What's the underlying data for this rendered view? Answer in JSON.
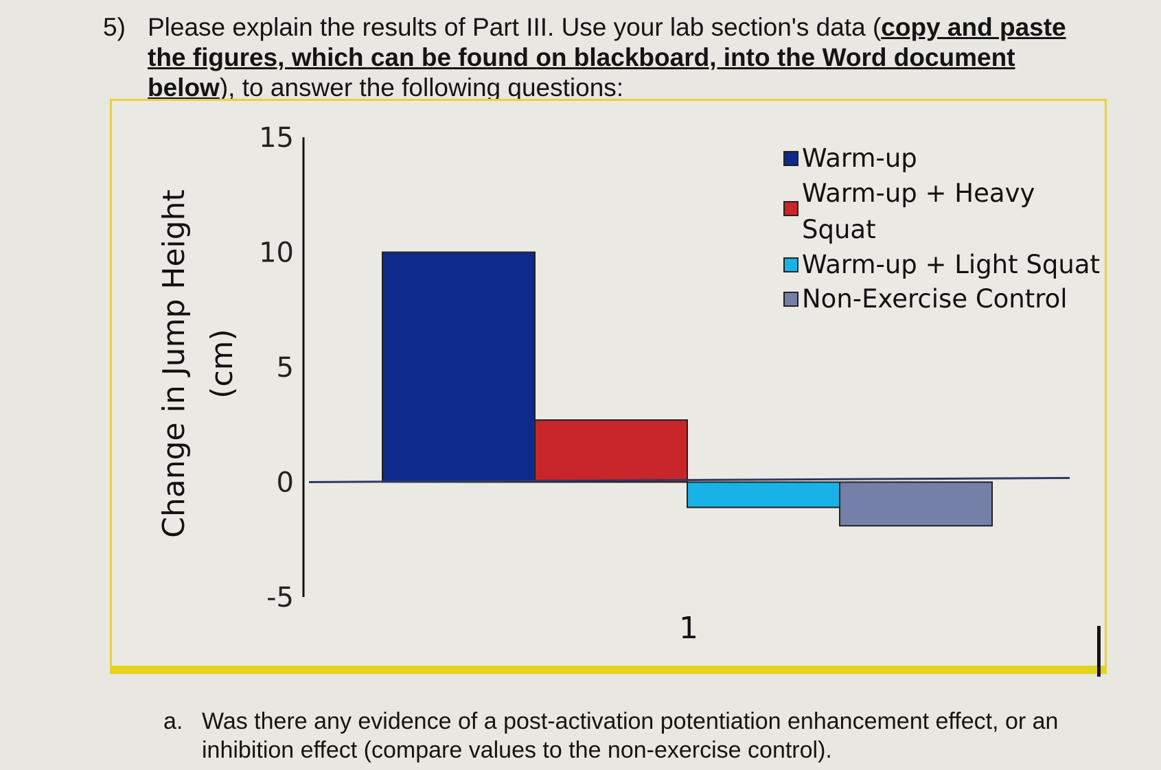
{
  "question": {
    "number": "5)",
    "text_before": "Please explain the results of Part III. Use your lab section's data (",
    "bold_underlined": "copy and paste the figures, which can be found on blackboard, into the Word document below",
    "text_after": "), to answer the following questions:"
  },
  "subquestion": {
    "label": "a.",
    "text": "Was there any evidence of a post-activation potentiation enhancement effect, or an inhibition effect (compare values to the non-exercise control)."
  },
  "chart_data": {
    "type": "bar",
    "categories": [
      "1"
    ],
    "series": [
      {
        "name": "Warm-up",
        "values": [
          10
        ],
        "color": "#0d2a8c"
      },
      {
        "name": "Warm-up + Heavy Squat",
        "values": [
          2.7
        ],
        "color": "#c8262b"
      },
      {
        "name": "Warm-up + Light Squat",
        "values": [
          -1.1
        ],
        "color": "#18b2e6"
      },
      {
        "name": "Non-Exercise Control",
        "values": [
          -1.9
        ],
        "color": "#7480a8"
      }
    ],
    "title": "",
    "xlabel": "",
    "ylabel": "Change in Jump Height (cm)",
    "ylabel_lines": [
      "Change in Jump Height",
      "(cm)"
    ],
    "ylim": [
      -5,
      15
    ],
    "yticks": [
      15,
      10,
      5,
      0,
      -5
    ],
    "legend_labels": [
      "Warm-up",
      "Warm-up + Heavy",
      "Squat",
      "Warm-up + Light Squat",
      "Non-Exercise Control"
    ],
    "legend_position": "top-right",
    "grid": false
  }
}
